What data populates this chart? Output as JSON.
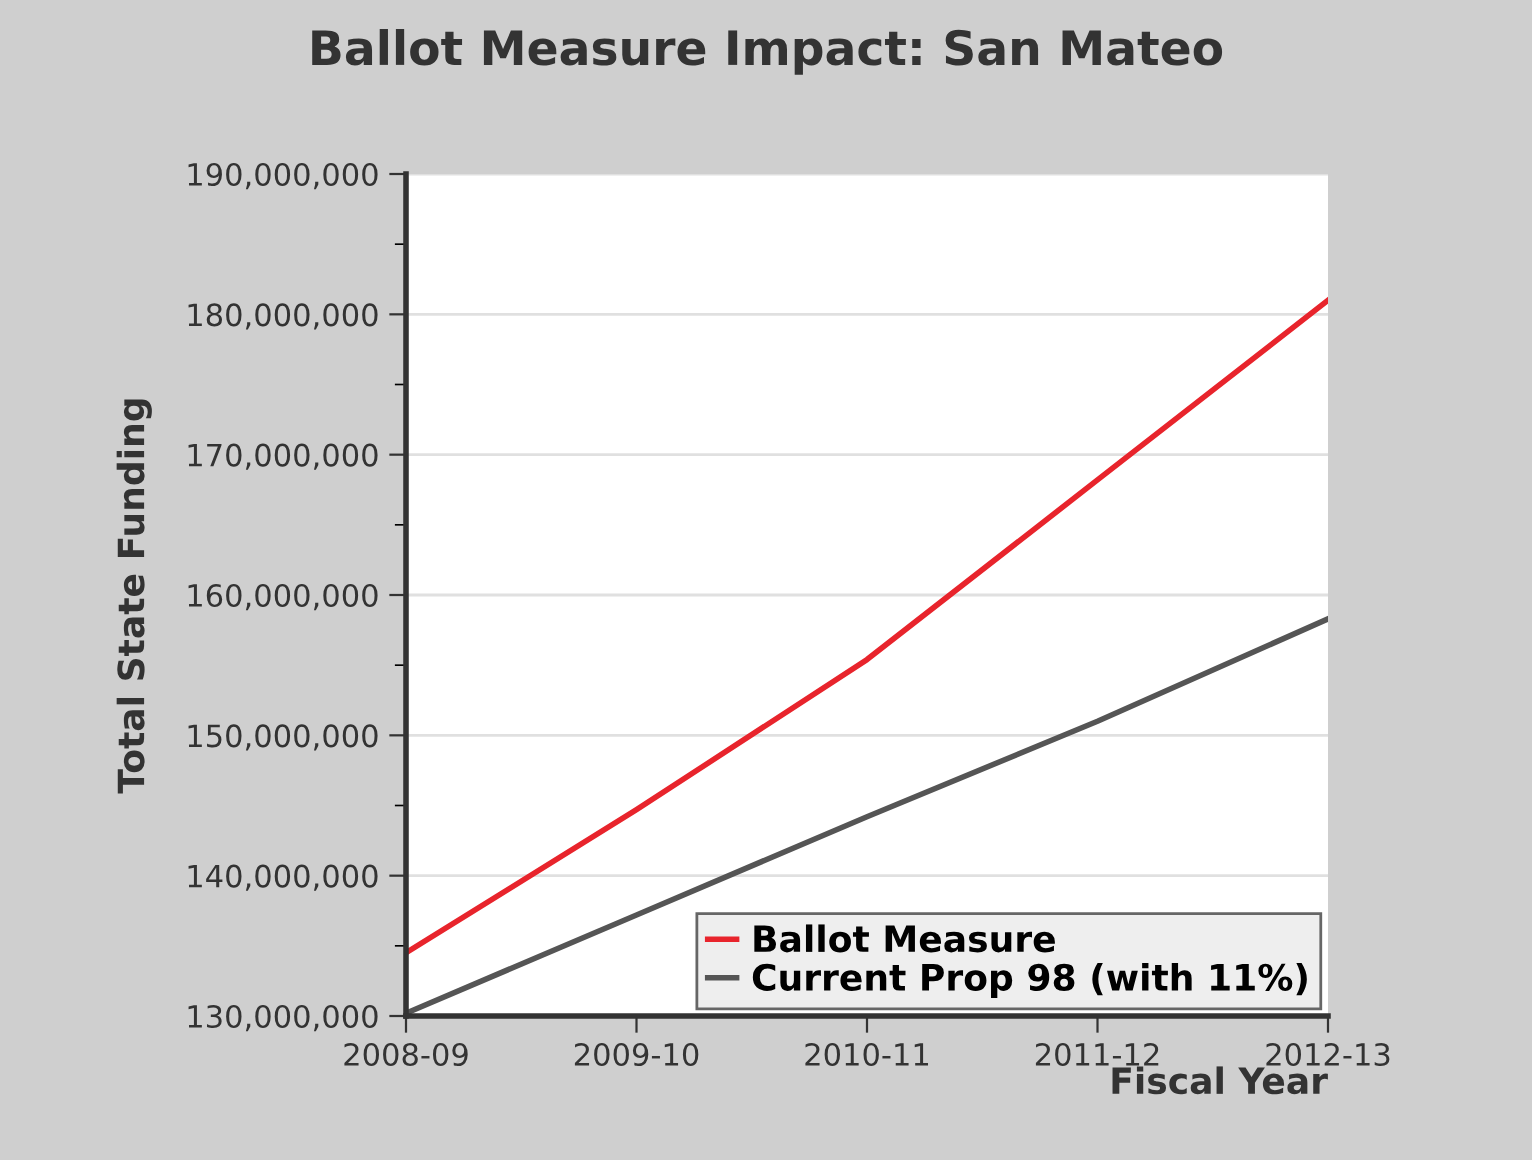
{
  "chart_data": {
    "type": "line",
    "title": "Ballot Measure Impact: San Mateo",
    "xlabel": "Fiscal Year",
    "ylabel": "Total State Funding",
    "categories": [
      "2008-09",
      "2009-10",
      "2010-11",
      "2011-12",
      "2012-13"
    ],
    "series": [
      {
        "name": "Ballot Measure",
        "color": "#e8242c",
        "values": [
          134500000,
          144700000,
          155400000,
          168200000,
          181000000
        ]
      },
      {
        "name": "Current Prop 98 (with 11%)",
        "color": "#555555",
        "values": [
          130200000,
          137200000,
          144200000,
          151000000,
          158300000
        ]
      }
    ],
    "ylim": [
      130000000,
      190000000
    ],
    "yticks": [
      {
        "value": 130000000,
        "label": "130,000,000"
      },
      {
        "value": 140000000,
        "label": "140,000,000"
      },
      {
        "value": 150000000,
        "label": "150,000,000"
      },
      {
        "value": 160000000,
        "label": "160,000,000"
      },
      {
        "value": 170000000,
        "label": "170,000,000"
      },
      {
        "value": 180000000,
        "label": "180,000,000"
      },
      {
        "value": 190000000,
        "label": "190,000,000"
      }
    ],
    "grid": "y",
    "legend": "bottom right",
    "marker": "none",
    "line_style": "solid"
  }
}
